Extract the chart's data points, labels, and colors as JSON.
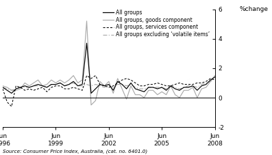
{
  "title_ylabel": "%change",
  "source": "Source: Consumer Price Index, Australia, (cat. no. 6401.0)",
  "xtick_labels": [
    "Jun\n1996",
    "Jun\n1999",
    "Jun\n2002",
    "Jun\n2005",
    "Jun\n2008"
  ],
  "xtick_positions": [
    0,
    12,
    24,
    36,
    48
  ],
  "ylim": [
    -2,
    6
  ],
  "yticks": [
    -2,
    0,
    2,
    4,
    6
  ],
  "legend_entries": [
    "All groups",
    "All groups, goods component",
    "All groups, services component",
    "All groups excluding ‘volatile items’"
  ],
  "all_groups": [
    0.7,
    0.5,
    0.3,
    0.6,
    0.7,
    0.8,
    0.7,
    0.8,
    0.9,
    0.8,
    0.7,
    0.9,
    0.9,
    1.0,
    0.8,
    0.9,
    1.1,
    0.8,
    0.9,
    3.7,
    0.3,
    0.6,
    0.9,
    0.8,
    0.9,
    0.5,
    1.1,
    0.9,
    0.6,
    1.0,
    0.6,
    0.5,
    0.4,
    0.7,
    0.7,
    0.6,
    0.7,
    0.5,
    0.8,
    0.6,
    0.5,
    0.7,
    0.7,
    0.8,
    0.5,
    0.8,
    0.9,
    1.2,
    1.4
  ],
  "goods": [
    0.8,
    0.7,
    0.5,
    0.5,
    0.6,
    1.0,
    0.8,
    1.0,
    1.2,
    0.8,
    0.9,
    1.2,
    1.0,
    1.2,
    1.0,
    1.2,
    1.5,
    1.0,
    1.2,
    5.2,
    -0.5,
    -0.2,
    1.1,
    0.8,
    1.1,
    0.3,
    1.3,
    0.6,
    -0.1,
    0.8,
    0.2,
    0.2,
    0.0,
    0.5,
    0.5,
    0.2,
    0.4,
    0.2,
    0.8,
    0.2,
    0.0,
    0.5,
    0.5,
    0.7,
    0.0,
    0.6,
    0.7,
    1.1,
    1.5
  ],
  "services": [
    0.6,
    -0.3,
    -0.6,
    0.8,
    0.7,
    0.5,
    0.6,
    0.5,
    0.6,
    0.7,
    0.4,
    0.7,
    0.8,
    0.8,
    0.6,
    0.6,
    0.7,
    0.6,
    0.5,
    1.5,
    1.3,
    1.5,
    0.9,
    0.8,
    0.7,
    0.8,
    1.0,
    1.2,
    1.3,
    1.2,
    1.0,
    0.8,
    0.8,
    0.9,
    0.9,
    1.0,
    0.9,
    0.8,
    0.8,
    0.9,
    1.0,
    0.9,
    0.9,
    0.9,
    1.0,
    1.0,
    1.1,
    1.3,
    1.2
  ],
  "excl_volatile": [
    0.7,
    0.6,
    0.5,
    0.6,
    0.7,
    0.7,
    0.7,
    0.8,
    0.8,
    0.8,
    0.7,
    0.9,
    0.9,
    1.0,
    0.8,
    0.9,
    1.0,
    0.8,
    0.8,
    0.9,
    0.8,
    0.9,
    0.8,
    0.7,
    0.8,
    0.7,
    0.9,
    0.9,
    0.8,
    0.9,
    0.7,
    0.6,
    0.6,
    0.7,
    0.7,
    0.7,
    0.7,
    0.6,
    0.8,
    0.7,
    0.6,
    0.7,
    0.8,
    0.8,
    0.7,
    0.9,
    1.0,
    1.1,
    1.3
  ],
  "color_all": "#000000",
  "color_goods": "#aaaaaa",
  "color_services": "#000000",
  "color_excl": "#aaaaaa",
  "background": "#ffffff"
}
